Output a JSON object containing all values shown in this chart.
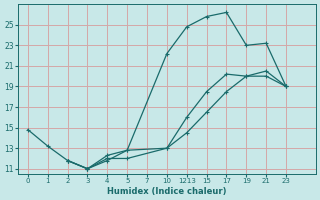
{
  "xlabel": "Humidex (Indice chaleur)",
  "ylabel": "",
  "bg_color": "#c8e8e8",
  "grid_color": "#d4a8a8",
  "line_color": "#1a6b6b",
  "xlim": [
    -0.5,
    14.5
  ],
  "ylim": [
    10.5,
    27.0
  ],
  "xtick_labels": [
    "0",
    "1",
    "2",
    "3",
    "4",
    "5",
    "7",
    "10",
    "1213",
    "15",
    "17",
    "19",
    "21",
    "23"
  ],
  "ytick_labels": [
    "11",
    "13",
    "15",
    "17",
    "19",
    "21",
    "23",
    "25"
  ],
  "ytick_positions": [
    11,
    13,
    15,
    17,
    19,
    21,
    23,
    25
  ],
  "lines": [
    {
      "xi": [
        0,
        1,
        2,
        3,
        4,
        5,
        7,
        8,
        9,
        10,
        11,
        12,
        13
      ],
      "y": [
        14.8,
        13.2,
        11.8,
        11.0,
        11.8,
        12.8,
        22.2,
        24.8,
        25.8,
        26.2,
        23.0,
        23.2,
        19.0
      ]
    },
    {
      "xi": [
        2,
        3,
        4,
        5,
        7,
        8,
        9,
        10,
        11,
        12,
        13
      ],
      "y": [
        11.8,
        11.0,
        12.3,
        12.8,
        13.0,
        16.0,
        18.5,
        20.2,
        20.0,
        20.5,
        19.0
      ]
    },
    {
      "xi": [
        2,
        3,
        4,
        5,
        7,
        8,
        9,
        10,
        11,
        12,
        13
      ],
      "y": [
        11.8,
        11.0,
        12.0,
        12.0,
        13.0,
        14.5,
        16.5,
        18.5,
        20.0,
        20.0,
        19.0
      ]
    }
  ]
}
